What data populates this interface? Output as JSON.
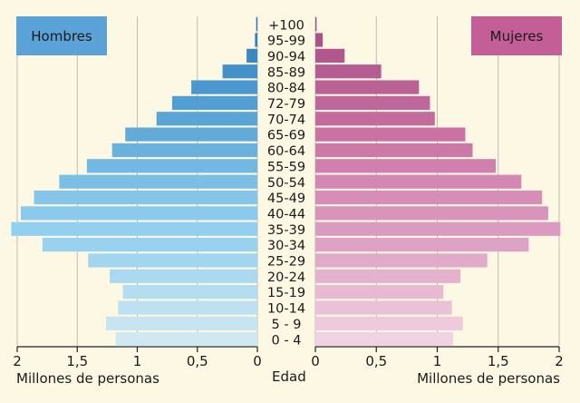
{
  "chart_data": {
    "type": "bar",
    "orientation": "horizontal",
    "layout": "population-pyramid",
    "categories": [
      "+100",
      "95-99",
      "90-94",
      "85-89",
      "80-84",
      "72-79",
      "70-74",
      "65-69",
      "60-64",
      "55-59",
      "50-54",
      "45-49",
      "40-44",
      "35-39",
      "30-34",
      "25-29",
      "20-24",
      "15-19",
      "10-14",
      "5 - 9",
      "0 - 4"
    ],
    "series": [
      {
        "name": "Hombres",
        "side": "left",
        "values": [
          0.01,
          0.02,
          0.09,
          0.29,
          0.55,
          0.71,
          0.84,
          1.1,
          1.21,
          1.42,
          1.65,
          1.86,
          1.97,
          2.05,
          1.79,
          1.41,
          1.23,
          1.12,
          1.16,
          1.26,
          1.18
        ],
        "colors": [
          "#2e7ab8",
          "#3581bf",
          "#3c88c5",
          "#4390cb",
          "#4b97cf",
          "#539ed3",
          "#5aa5d6",
          "#62abd8",
          "#6ab2dd",
          "#72b8e2",
          "#7bbfe6",
          "#84c5e9",
          "#8bcaec",
          "#93cfef",
          "#99d2ef",
          "#a2d6ef",
          "#abdaf0",
          "#b3ddf0",
          "#bde1f0",
          "#c6e5f0",
          "#cfe9f2"
        ]
      },
      {
        "name": "Mujeres",
        "side": "right",
        "values": [
          0.01,
          0.06,
          0.24,
          0.54,
          0.85,
          0.94,
          0.98,
          1.23,
          1.29,
          1.48,
          1.69,
          1.86,
          1.91,
          2.01,
          1.75,
          1.41,
          1.19,
          1.05,
          1.12,
          1.21,
          1.13
        ],
        "colors": [
          "#a54d85",
          "#ab5289",
          "#b0578e",
          "#b55c92",
          "#ba6196",
          "#bf669a",
          "#c46b9e",
          "#c972a3",
          "#cc79a8",
          "#d080ad",
          "#d387b2",
          "#d68eb7",
          "#d894bb",
          "#db9bc0",
          "#dea2c4",
          "#e1aac9",
          "#e4b2cd",
          "#e7bad2",
          "#eac2d7",
          "#edcadc",
          "#f0d2e1"
        ]
      }
    ],
    "xlim": [
      0,
      2
    ],
    "x_ticks": [
      "2",
      "1,5",
      "1",
      "0,5",
      "0",
      "0",
      "0,5",
      "1",
      "1,5",
      "2"
    ],
    "xlabel_left": "Millones de personas",
    "xlabel_right": "Millones de personas",
    "center_label": "Edad",
    "legend": [
      {
        "label": "Hombres",
        "position": "top-left",
        "color": "#5ba3d6"
      },
      {
        "label": "Mujeres",
        "position": "top-right",
        "color": "#c35e97"
      }
    ],
    "grid": "vertical"
  }
}
